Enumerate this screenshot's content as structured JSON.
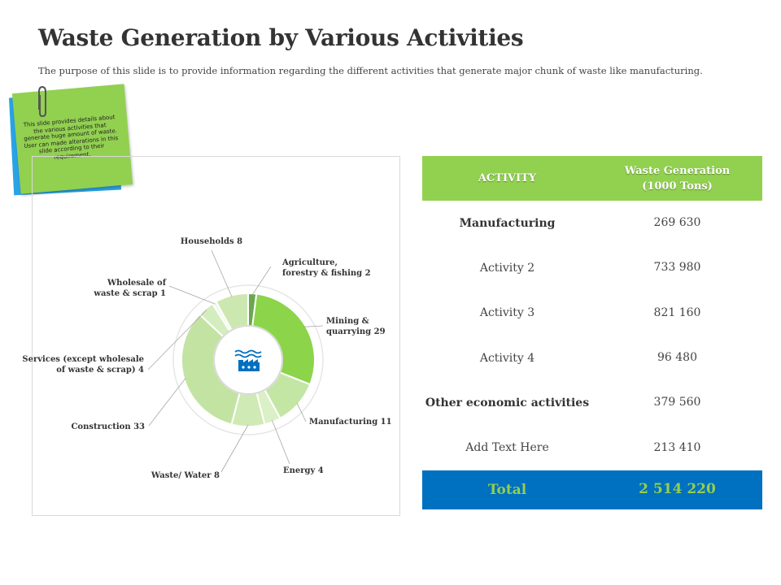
{
  "slide": {
    "title": "Waste Generation by Various Activities",
    "subtitle": "The purpose of this slide is to provide information regarding  the different  activities that generate  major  chunk of waste like manufacturing.",
    "sticky_note": "This slide provides details about the various activities that generate huge amount of waste. User can made alterations in this slide according to their requirement."
  },
  "colors": {
    "accent_green": "#92d050",
    "accent_blue": "#0070c0",
    "note_blue": "#29a3e6",
    "donut_dark": "#6aa84f"
  },
  "icons": {
    "paperclip": "paperclip-icon",
    "factory": "factory-icon"
  },
  "chart_data": {
    "type": "pie",
    "variant": "donut",
    "categories": [
      "Agriculture, forestry & fishing",
      "Mining & quarrying",
      "Manufacturing",
      "Energy",
      "Waste/ Water",
      "Construction",
      "Services (except wholesale of waste & scrap)",
      "Wholesale of waste & scrap",
      "Households"
    ],
    "values": [
      2,
      29,
      11,
      4,
      8,
      33,
      4,
      1,
      8
    ],
    "labels": [
      "Agriculture, forestry & fishing 2",
      "Mining & quarrying 29",
      "Manufacturing 11",
      "Energy 4",
      "Waste/ Water 8",
      "Construction 33",
      "Services (except wholesale of waste & scrap) 4",
      "Wholesale of waste & scrap 1",
      "Households 8"
    ],
    "colors": [
      "#6aa84f",
      "#8cd44a",
      "#c4e6a4",
      "#dbf0c6",
      "#cfeab4",
      "#c3e3a3",
      "#d4edbf",
      "#f0f8e8",
      "#cce8b0"
    ]
  },
  "table": {
    "headers": [
      "ACTIVITY",
      "Waste Generation (1000 Tons)"
    ],
    "rows": [
      {
        "activity": "Manufacturing",
        "value": "269 630"
      },
      {
        "activity": "Activity 2",
        "value": "733 980"
      },
      {
        "activity": "Activity 3",
        "value": "821 160"
      },
      {
        "activity": "Activity 4",
        "value": "96 480"
      },
      {
        "activity": "Other economic activities",
        "value": "379 560"
      },
      {
        "activity": "Add Text Here",
        "value": "213 410"
      }
    ],
    "total_label": "Total",
    "total_value": "2 514 220"
  }
}
